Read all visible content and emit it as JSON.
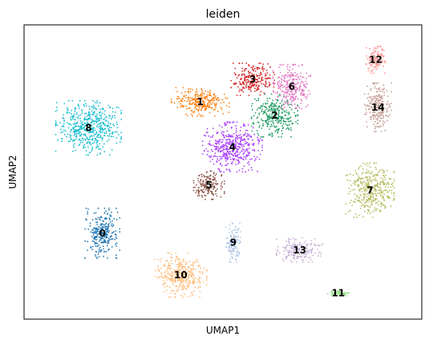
{
  "chart_data": {
    "type": "scatter",
    "title": "leiden",
    "xlabel": "UMAP1",
    "ylabel": "UMAP2",
    "xlim": [
      0,
      100
    ],
    "ylim": [
      0,
      100
    ],
    "grid": false,
    "legend": "on data",
    "clusters": [
      {
        "label": "0",
        "color": "#1f77b4",
        "x": 19.7,
        "y": 29.2,
        "sx": 3.6,
        "sy": 7.0
      },
      {
        "label": "1",
        "color": "#ff7f0e",
        "x": 44.3,
        "y": 73.8,
        "sx": 6.0,
        "sy": 4.0
      },
      {
        "label": "2",
        "color": "#279e68",
        "x": 63.0,
        "y": 69.2,
        "sx": 4.8,
        "sy": 6.0
      },
      {
        "label": "3",
        "color": "#d62728",
        "x": 57.5,
        "y": 81.5,
        "sx": 4.5,
        "sy": 4.5
      },
      {
        "label": "4",
        "color": "#aa40fc",
        "x": 52.4,
        "y": 58.5,
        "sx": 6.2,
        "sy": 7.0
      },
      {
        "label": "5",
        "color": "#8c564b",
        "x": 46.5,
        "y": 45.5,
        "sx": 3.2,
        "sy": 4.0
      },
      {
        "label": "6",
        "color": "#e377c2",
        "x": 67.3,
        "y": 79.0,
        "sx": 3.9,
        "sy": 6.2
      },
      {
        "label": "7",
        "color": "#b5bd61",
        "x": 87.0,
        "y": 43.8,
        "sx": 5.0,
        "sy": 7.6
      },
      {
        "label": "8",
        "color": "#17becf",
        "x": 16.2,
        "y": 65.0,
        "sx": 6.8,
        "sy": 7.6
      },
      {
        "label": "9",
        "color": "#aec7e8",
        "x": 52.6,
        "y": 26.0,
        "sx": 1.5,
        "sy": 5.5
      },
      {
        "label": "10",
        "color": "#ffbb78",
        "x": 39.4,
        "y": 15.0,
        "sx": 5.4,
        "sy": 6.2
      },
      {
        "label": "11",
        "color": "#98df8a",
        "x": 79.0,
        "y": 8.8,
        "sx": 2.2,
        "sy": 0.7
      },
      {
        "label": "12",
        "color": "#ff9896",
        "x": 88.4,
        "y": 88.2,
        "sx": 2.0,
        "sy": 3.8
      },
      {
        "label": "13",
        "color": "#c5b0d5",
        "x": 69.3,
        "y": 23.5,
        "sx": 4.8,
        "sy": 3.4
      },
      {
        "label": "14",
        "color": "#c49c94",
        "x": 89.0,
        "y": 72.0,
        "sx": 2.8,
        "sy": 6.8
      }
    ]
  }
}
